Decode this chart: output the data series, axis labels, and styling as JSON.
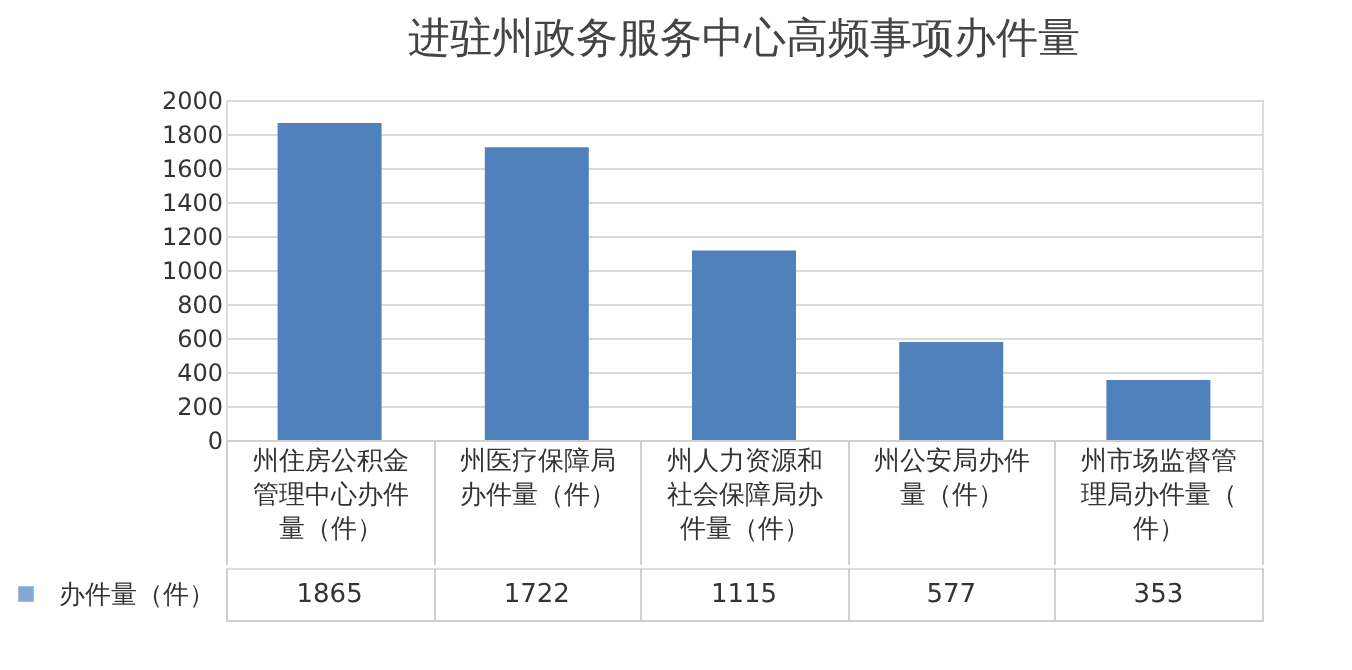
{
  "chart_data": {
    "type": "bar",
    "title": "进驻州政务服务中心高频事项办件量",
    "categories": [
      "州住房公积金管理中心办件量（件）",
      "州医疗保障局办件量（件）",
      "州人力资源和社会保障局办件量（件）",
      "州公安局办件量（件）",
      "州市场监督管理局办件量（件）"
    ],
    "series": [
      {
        "name": "办件量（件）",
        "color": "#4f81bd",
        "values": [
          1865,
          1722,
          1115,
          577,
          353
        ]
      }
    ],
    "ylim": [
      0,
      2000
    ],
    "yticks": [
      0,
      200,
      400,
      600,
      800,
      1000,
      1200,
      1400,
      1600,
      1800,
      2000
    ],
    "grid": "y",
    "data_labels": true,
    "legend": "bottom left"
  }
}
